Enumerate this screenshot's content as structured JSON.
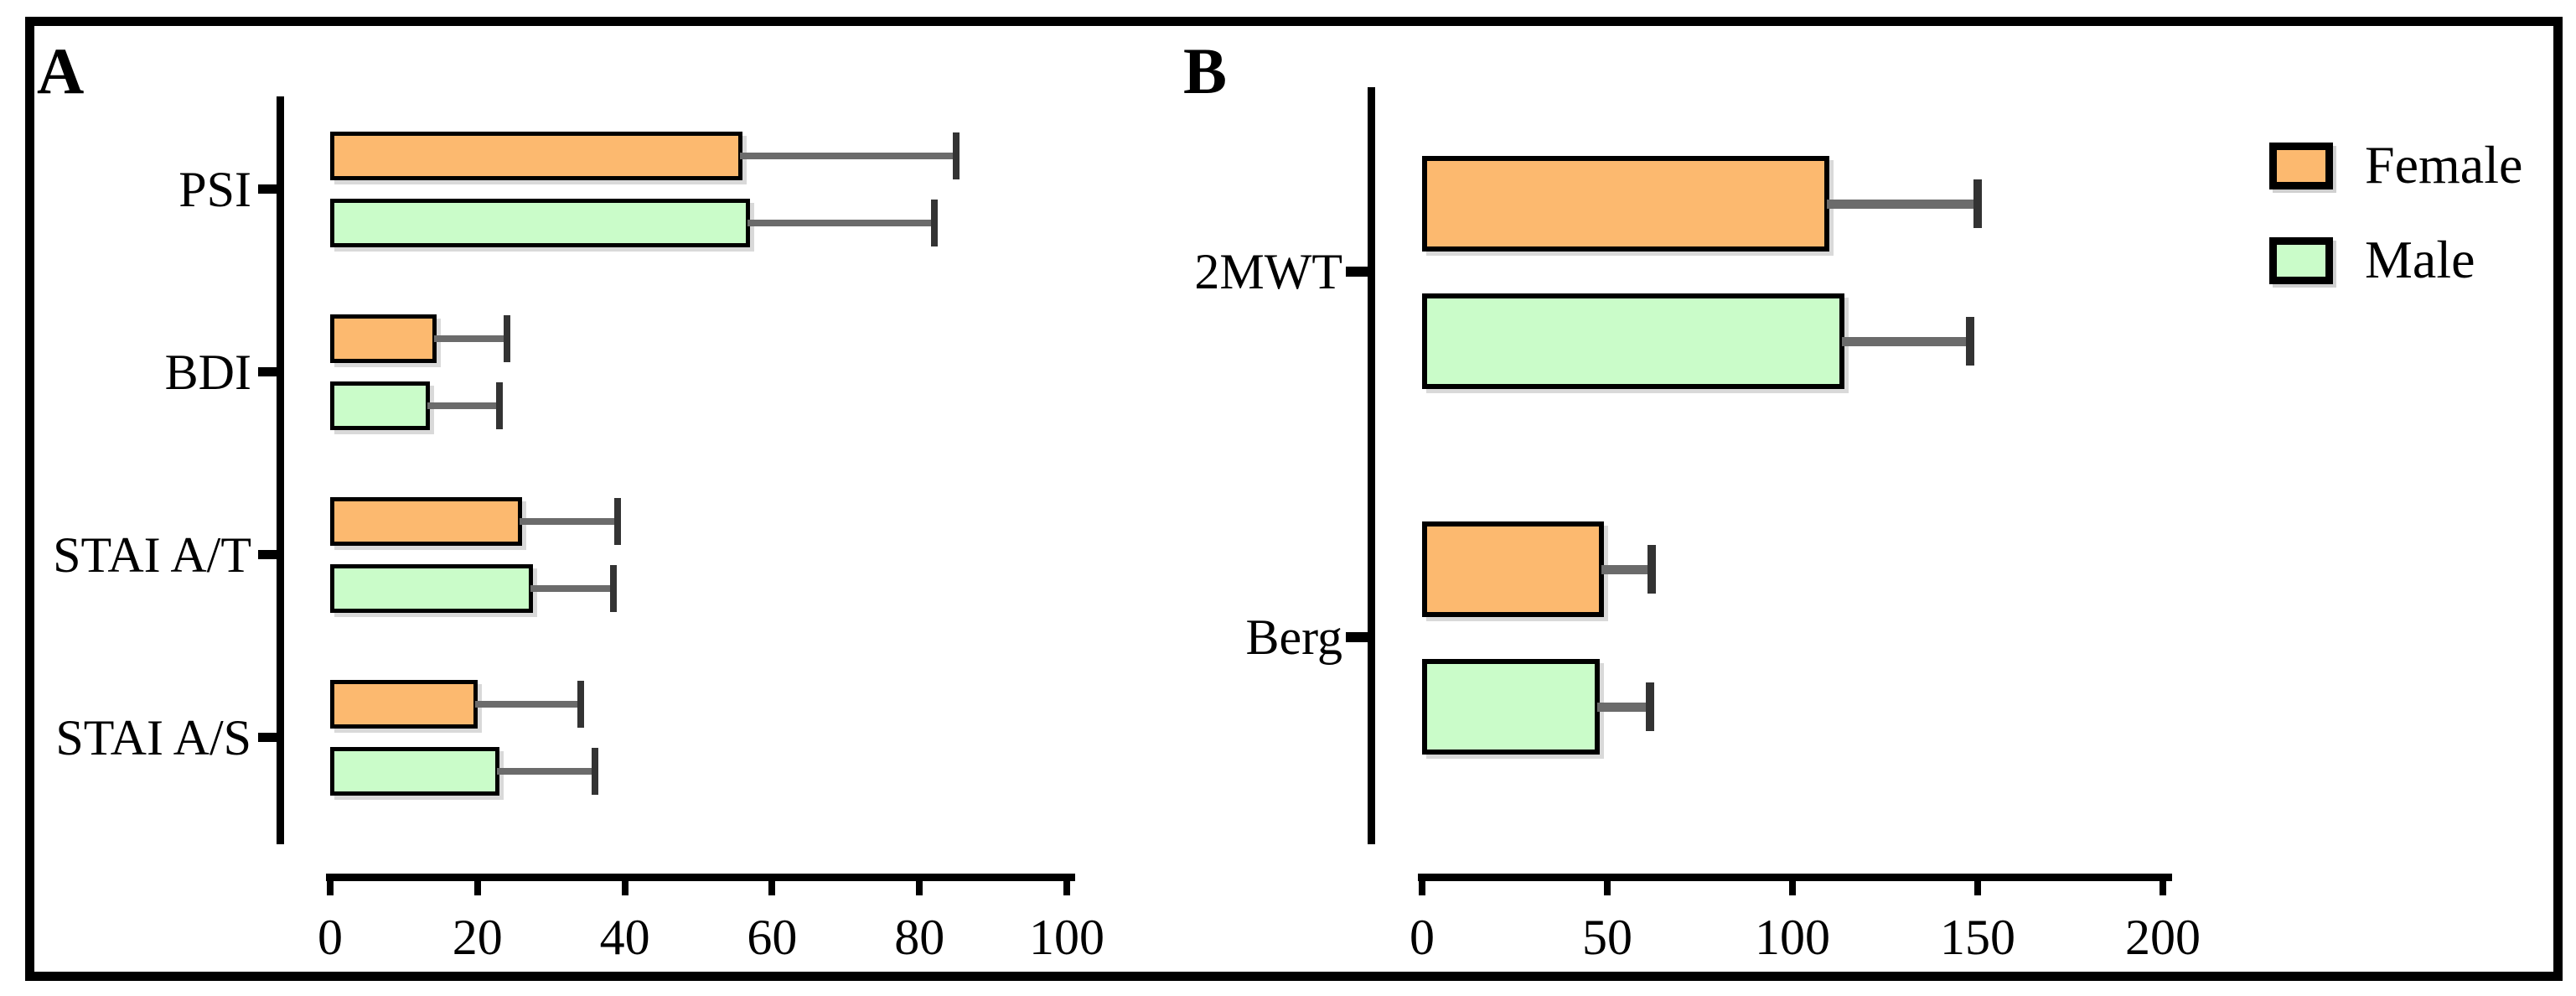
{
  "figure": {
    "description": "Two-panel grouped horizontal bar chart with error bars comparing Female and Male scores",
    "panels": [
      {
        "letter": "A"
      },
      {
        "letter": "B"
      }
    ]
  },
  "legend": {
    "items": [
      {
        "label": "Female",
        "color": "#FCB96F"
      },
      {
        "label": "Male",
        "color": "#CAFCC9"
      }
    ]
  },
  "colors": {
    "female_fill": "#FCB96F",
    "male_fill": "#CAFCC9",
    "bar_border": "#000000",
    "error_line": "#6B6B6B",
    "error_cap": "#333333",
    "axis": "#000000",
    "background": "#FFFFFF"
  },
  "chart_data": [
    {
      "type": "bar",
      "panel": "A",
      "orientation": "horizontal",
      "categories": [
        "PSI",
        "BDI",
        "STAI A/T",
        "STAI A/S"
      ],
      "series": [
        {
          "name": "Female",
          "values": [
            56,
            14.5,
            26,
            20
          ],
          "errors_plus": [
            29,
            9.5,
            13,
            14
          ]
        },
        {
          "name": "Male",
          "values": [
            57,
            13.5,
            27.5,
            23
          ],
          "errors_plus": [
            25,
            9.5,
            11,
            13
          ]
        }
      ],
      "xlim": [
        0,
        100
      ],
      "xticks": [
        0,
        20,
        40,
        60,
        80,
        100
      ],
      "grid": false,
      "error_caps": true,
      "legend_position": "outside-right"
    },
    {
      "type": "bar",
      "panel": "B",
      "orientation": "horizontal",
      "categories": [
        "2MWT",
        "Berg"
      ],
      "series": [
        {
          "name": "Female",
          "values": [
            110,
            49
          ],
          "errors_plus": [
            40,
            13
          ]
        },
        {
          "name": "Male",
          "values": [
            114,
            48
          ],
          "errors_plus": [
            34,
            13.5
          ]
        }
      ],
      "xlim": [
        0,
        200
      ],
      "xticks": [
        0,
        50,
        100,
        150,
        200
      ],
      "grid": false,
      "error_caps": true,
      "legend_position": "outside-right"
    }
  ]
}
